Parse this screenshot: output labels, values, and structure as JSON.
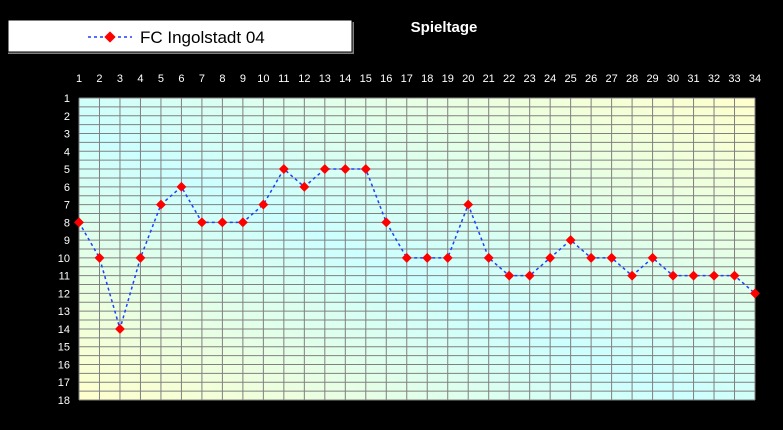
{
  "chart_data": {
    "type": "line",
    "title": "Spieltage",
    "xlabel": "",
    "ylabel": "",
    "x": [
      1,
      2,
      3,
      4,
      5,
      6,
      7,
      8,
      9,
      10,
      11,
      12,
      13,
      14,
      15,
      16,
      17,
      18,
      19,
      20,
      21,
      22,
      23,
      24,
      25,
      26,
      27,
      28,
      29,
      30,
      31,
      32,
      33,
      34
    ],
    "xlim": [
      1,
      34
    ],
    "ylim": [
      1,
      18
    ],
    "y_inverted": true,
    "x_axis_position": "top",
    "grid": true,
    "legend": "top-left",
    "series": [
      {
        "name": "FC Ingolstadt 04",
        "values": [
          8,
          10,
          14,
          10,
          7,
          6,
          8,
          8,
          8,
          7,
          5,
          6,
          5,
          5,
          5,
          8,
          10,
          10,
          10,
          7,
          10,
          11,
          11,
          10,
          9,
          10,
          10,
          11,
          10,
          11,
          11,
          11,
          11,
          12
        ],
        "line_color": "#1f3fff",
        "marker_color": "#ff0000",
        "line_style": "dotted",
        "marker": "diamond"
      }
    ],
    "colors": {
      "background": "#000000",
      "grid": "#808080",
      "plot_gradient": [
        "#ffffcc",
        "#ccffff",
        "#ffffcc"
      ]
    }
  }
}
